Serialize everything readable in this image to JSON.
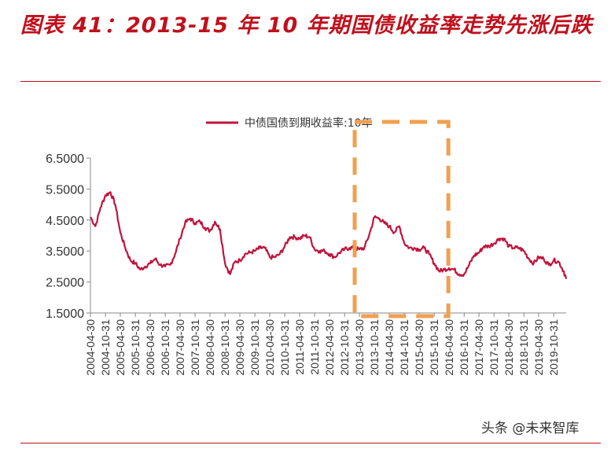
{
  "header": {
    "title": "图表 41：2013-15 年 10 年期国债收益率走势先涨后跌"
  },
  "watermark": "头条 @未来智库",
  "colors": {
    "title": "#c0101c",
    "line": "#c0143c",
    "highlight_box": "#f0a050",
    "axis": "#888888"
  },
  "chart_data": {
    "type": "line",
    "title": "",
    "xlabel": "",
    "ylabel": "",
    "ylim": [
      1.5,
      6.5
    ],
    "y_ticks": [
      "6.5000",
      "5.5000",
      "4.5000",
      "3.5000",
      "2.5000",
      "1.5000"
    ],
    "x_tick_labels": [
      "2004-04-30",
      "2004-10-31",
      "2005-04-30",
      "2005-10-31",
      "2006-04-30",
      "2006-10-31",
      "2007-04-30",
      "2007-10-31",
      "2008-04-30",
      "2008-10-31",
      "2009-04-30",
      "2009-10-31",
      "2010-04-30",
      "2010-10-31",
      "2011-04-30",
      "2011-10-31",
      "2012-04-30",
      "2012-10-31",
      "2013-04-30",
      "2013-10-31",
      "2014-04-30",
      "2014-10-31",
      "2015-04-30",
      "2015-10-31",
      "2016-04-30",
      "2016-10-31",
      "2017-04-30",
      "2017-10-31",
      "2018-04-30",
      "2018-10-31",
      "2019-04-30",
      "2019-10-31"
    ],
    "legend": {
      "position": "top",
      "entries": [
        "中债国债到期收益率:10年"
      ]
    },
    "grid": false,
    "highlight": {
      "from": "2013-04-30",
      "to": "2015-10-31"
    },
    "series": [
      {
        "name": "中债国债到期收益率:10年",
        "x": [
          "2004-04-30",
          "2004-06-30",
          "2004-08-31",
          "2004-10-31",
          "2004-12-31",
          "2005-02-28",
          "2005-04-30",
          "2005-06-30",
          "2005-08-31",
          "2005-10-31",
          "2005-12-31",
          "2006-02-28",
          "2006-04-30",
          "2006-06-30",
          "2006-08-31",
          "2006-10-31",
          "2006-12-31",
          "2007-02-28",
          "2007-04-30",
          "2007-06-30",
          "2007-08-31",
          "2007-10-31",
          "2007-12-31",
          "2008-02-29",
          "2008-04-30",
          "2008-06-30",
          "2008-08-31",
          "2008-10-31",
          "2008-12-31",
          "2009-02-28",
          "2009-04-30",
          "2009-06-30",
          "2009-08-31",
          "2009-10-31",
          "2009-12-31",
          "2010-02-28",
          "2010-04-30",
          "2010-06-30",
          "2010-08-31",
          "2010-10-31",
          "2010-12-31",
          "2011-02-28",
          "2011-04-30",
          "2011-06-30",
          "2011-08-31",
          "2011-10-31",
          "2011-12-31",
          "2012-02-29",
          "2012-04-30",
          "2012-06-30",
          "2012-08-31",
          "2012-10-31",
          "2012-12-31",
          "2013-02-28",
          "2013-04-30",
          "2013-06-30",
          "2013-08-31",
          "2013-10-31",
          "2013-12-31",
          "2014-02-28",
          "2014-04-30",
          "2014-06-30",
          "2014-08-31",
          "2014-10-31",
          "2014-12-31",
          "2015-02-28",
          "2015-04-30",
          "2015-06-30",
          "2015-08-31",
          "2015-10-31",
          "2015-12-31",
          "2016-02-29",
          "2016-04-30",
          "2016-06-30",
          "2016-08-31",
          "2016-10-31",
          "2016-12-31",
          "2017-02-28",
          "2017-04-30",
          "2017-06-30",
          "2017-08-31",
          "2017-10-31",
          "2017-12-31",
          "2018-02-28",
          "2018-04-30",
          "2018-06-30",
          "2018-08-31",
          "2018-10-31",
          "2018-12-31",
          "2019-02-28",
          "2019-04-30",
          "2019-06-30",
          "2019-08-31",
          "2019-10-31",
          "2019-12-31",
          "2020-02-29",
          "2020-03-31"
        ],
        "values": [
          4.6,
          4.3,
          4.9,
          5.3,
          5.4,
          5.0,
          4.1,
          3.6,
          3.2,
          3.1,
          2.9,
          3.0,
          3.1,
          3.25,
          3.05,
          3.0,
          3.05,
          3.4,
          3.9,
          4.4,
          4.55,
          4.4,
          4.45,
          4.25,
          4.15,
          4.45,
          4.2,
          3.1,
          2.75,
          3.15,
          3.2,
          3.4,
          3.45,
          3.5,
          3.6,
          3.6,
          3.3,
          3.3,
          3.4,
          3.65,
          3.95,
          3.95,
          3.9,
          4.0,
          3.95,
          3.55,
          3.5,
          3.5,
          3.4,
          3.3,
          3.45,
          3.55,
          3.6,
          3.6,
          3.55,
          3.6,
          4.05,
          4.6,
          4.55,
          4.4,
          4.3,
          4.1,
          4.3,
          3.75,
          3.6,
          3.6,
          3.55,
          3.6,
          3.4,
          3.1,
          2.85,
          2.9,
          2.95,
          2.9,
          2.75,
          2.75,
          3.05,
          3.35,
          3.45,
          3.65,
          3.65,
          3.75,
          3.9,
          3.9,
          3.65,
          3.6,
          3.6,
          3.5,
          3.25,
          3.1,
          3.3,
          3.25,
          3.05,
          3.2,
          3.15,
          2.85,
          2.6
        ]
      }
    ]
  }
}
